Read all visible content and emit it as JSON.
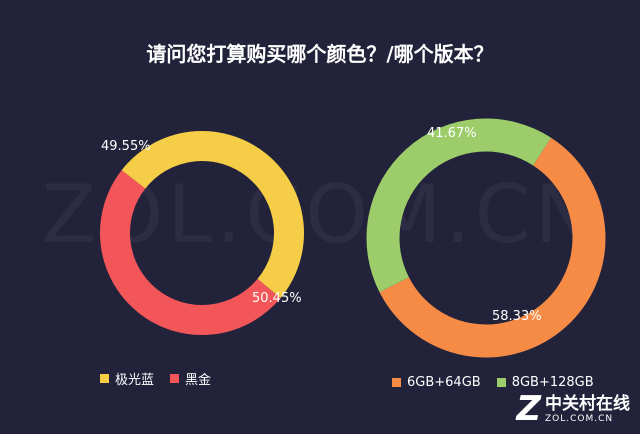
{
  "header": {
    "title": "请问您打算购买哪个颜色？/哪个版本？"
  },
  "watermark": "ZOL.COM.CN",
  "logo": {
    "mark": "Z",
    "cn": "中关村在线",
    "en": "ZOL.COM.CN"
  },
  "chart_data": [
    {
      "type": "pie",
      "title": "",
      "slices": [
        {
          "label": "极光蓝",
          "value": 50.45,
          "value_label": "50.45%",
          "color": "#f6cd47"
        },
        {
          "label": "黑金",
          "value": 49.55,
          "value_label": "49.55%",
          "color": "#f25659"
        }
      ],
      "donut": true,
      "legend_position": "bottom-left"
    },
    {
      "type": "pie",
      "title": "",
      "slices": [
        {
          "label": "6GB+64GB",
          "value": 58.33,
          "value_label": "58.33%",
          "color": "#f68b46"
        },
        {
          "label": "8GB+128GB",
          "value": 41.67,
          "value_label": "41.67%",
          "color": "#9ccd6a"
        }
      ],
      "donut": true,
      "legend_position": "bottom-right"
    }
  ]
}
